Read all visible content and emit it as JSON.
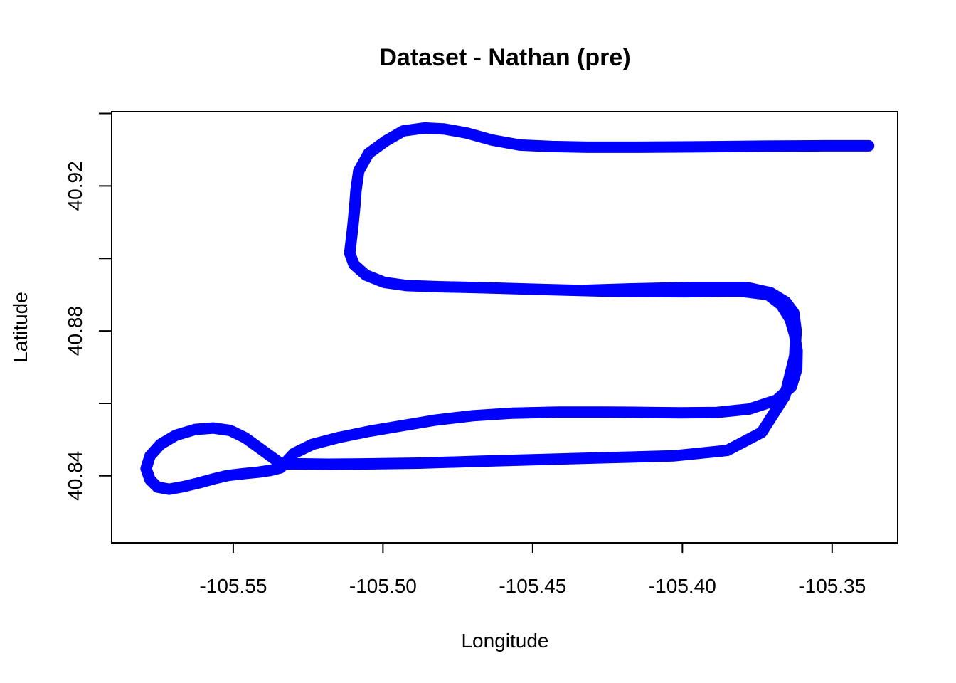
{
  "chart_data": {
    "type": "line",
    "title": "Dataset - Nathan (pre)",
    "xlabel": "Longitude",
    "ylabel": "Latitude",
    "xlim": [
      -105.5906,
      -105.3281
    ],
    "ylim": [
      40.8215,
      40.9405
    ],
    "xticks": [
      -105.55,
      -105.5,
      -105.45,
      -105.4,
      -105.35
    ],
    "xtick_labels": [
      "-105.55",
      "-105.50",
      "-105.45",
      "-105.40",
      "-105.35"
    ],
    "yticks": [
      40.84,
      40.86,
      40.88,
      40.9,
      40.92,
      40.94
    ],
    "ytick_labels": [
      "40.84",
      "",
      "40.88",
      "",
      "40.92",
      ""
    ],
    "grid": false,
    "series": [
      {
        "color": "#0000ff",
        "x": [
          -105.3378,
          -105.3528,
          -105.3725,
          -105.3961,
          -105.4151,
          -105.4317,
          -105.4435,
          -105.4543,
          -105.4637,
          -105.472,
          -105.4794,
          -105.4862,
          -105.4932,
          -105.4991,
          -105.5048,
          -105.5081,
          -105.509,
          -105.5094,
          -105.51,
          -105.5106,
          -105.5111,
          -105.5097,
          -105.5057,
          -105.4996,
          -105.492,
          -105.4815,
          -105.466,
          -105.4455,
          -105.4218,
          -105.3991,
          -105.381,
          -105.3714,
          -105.367,
          -105.364,
          -105.3625,
          -105.3617,
          -105.3618,
          -105.3636,
          -105.3686,
          -105.3778,
          -105.3885,
          -105.4005,
          -105.4123,
          -105.4258,
          -105.4413,
          -105.4566,
          -105.4699,
          -105.4823,
          -105.4924,
          -105.5046,
          -105.5146,
          -105.5235,
          -105.5297,
          -105.5342,
          -105.5376,
          -105.5416,
          -105.5464,
          -105.5518,
          -105.5569,
          -105.5617,
          -105.5668,
          -105.5714,
          -105.5753,
          -105.5778,
          -105.5791,
          -105.5778,
          -105.5743,
          -105.5692,
          -105.5627,
          -105.5568,
          -105.551,
          -105.546,
          -105.5405,
          -105.534,
          -105.5277,
          -105.518,
          -105.505,
          -105.488,
          -105.468,
          -105.447,
          -105.425,
          -105.403,
          -105.385,
          -105.3735,
          -105.3658,
          -105.3625,
          -105.362,
          -105.3628,
          -105.3655,
          -105.3705,
          -105.3785,
          -105.3965,
          -105.417,
          -105.433
        ],
        "y": [
          40.9311,
          40.9311,
          40.931,
          40.9308,
          40.9307,
          40.9307,
          40.9309,
          40.9313,
          40.9327,
          40.9346,
          40.9357,
          40.936,
          40.9352,
          40.9324,
          40.929,
          40.9241,
          40.9188,
          40.9144,
          40.9093,
          40.905,
          40.9015,
          40.8983,
          40.8954,
          40.8934,
          40.8925,
          40.8922,
          40.8919,
          40.8914,
          40.8909,
          40.8908,
          40.891,
          40.89,
          40.8872,
          40.8832,
          40.8789,
          40.8745,
          40.8695,
          40.8646,
          40.8609,
          40.8584,
          40.8575,
          40.8574,
          40.8575,
          40.8576,
          40.8576,
          40.8573,
          40.8566,
          40.8554,
          40.854,
          40.8523,
          40.8506,
          40.8487,
          40.8462,
          40.8422,
          40.8415,
          40.841,
          40.8406,
          40.8401,
          40.8391,
          40.838,
          40.837,
          40.8363,
          40.8369,
          40.8389,
          40.842,
          40.8455,
          40.8487,
          40.8512,
          40.8528,
          40.8532,
          40.8525,
          40.8505,
          40.8472,
          40.8433,
          40.8433,
          40.8432,
          40.8433,
          40.8435,
          40.844,
          40.8445,
          40.845,
          40.8455,
          40.847,
          40.852,
          40.862,
          40.873,
          40.88,
          40.885,
          40.888,
          40.8905,
          40.892,
          40.892,
          40.8916,
          40.8912
        ]
      }
    ]
  }
}
